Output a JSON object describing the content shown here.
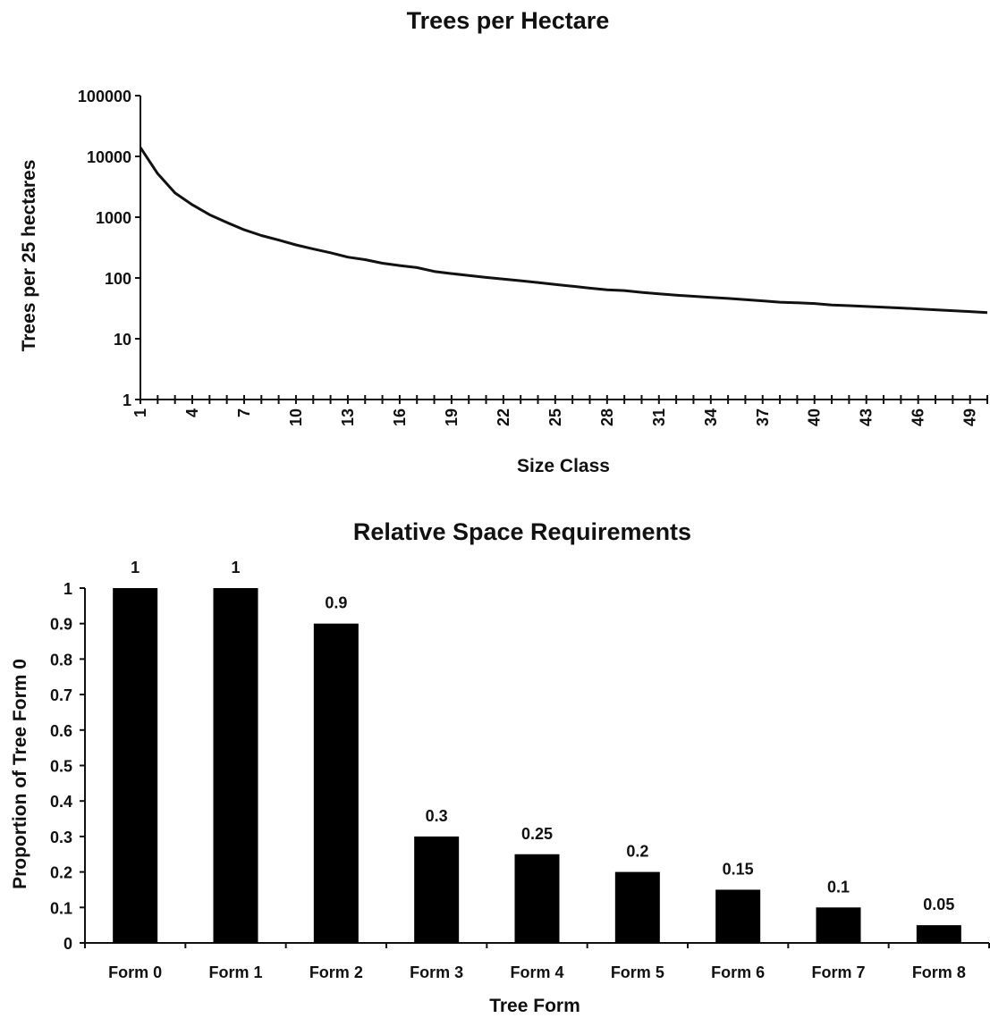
{
  "chart_data": [
    {
      "type": "line",
      "title": "Trees per Hectare",
      "xlabel": "Size Class",
      "ylabel": "Trees per 25 hectares",
      "yscale": "log",
      "ylim": [
        1,
        100000
      ],
      "yticks": [
        "1",
        "10",
        "100",
        "1000",
        "10000",
        "100000"
      ],
      "xlim": [
        1,
        50
      ],
      "xticks": [
        "1",
        "4",
        "7",
        "10",
        "13",
        "16",
        "19",
        "22",
        "25",
        "28",
        "31",
        "34",
        "37",
        "40",
        "43",
        "46",
        "49"
      ],
      "x": [
        1,
        2,
        3,
        4,
        5,
        6,
        7,
        8,
        9,
        10,
        11,
        12,
        13,
        14,
        15,
        16,
        17,
        18,
        19,
        20,
        21,
        22,
        23,
        24,
        25,
        26,
        27,
        28,
        29,
        30,
        31,
        32,
        33,
        34,
        35,
        36,
        37,
        38,
        39,
        40,
        41,
        42,
        43,
        44,
        45,
        46,
        47,
        48,
        49,
        50
      ],
      "series": [
        {
          "values": [
            14000,
            5200,
            2500,
            1600,
            1100,
            820,
            620,
            500,
            420,
            350,
            300,
            260,
            220,
            200,
            175,
            160,
            148,
            128,
            118,
            110,
            102,
            96,
            90,
            84,
            78,
            73,
            68,
            64,
            62,
            58,
            55,
            52,
            50,
            48,
            46,
            44,
            42,
            40,
            39,
            38,
            36,
            35,
            34,
            33,
            32,
            31,
            30,
            29,
            28,
            27
          ]
        }
      ],
      "grid": false,
      "line_color": "#111111"
    },
    {
      "type": "bar",
      "title": "Relative Space Requirements",
      "xlabel": "Tree Form",
      "ylabel": "Proportion of Tree Form 0",
      "ylim": [
        0,
        1
      ],
      "yticks": [
        "0",
        "0.1",
        "0.2",
        "0.3",
        "0.4",
        "0.5",
        "0.6",
        "0.7",
        "0.8",
        "0.9",
        "1"
      ],
      "categories": [
        "Form 0",
        "Form 1",
        "Form 2",
        "Form 3",
        "Form 4",
        "Form 5",
        "Form 6",
        "Form 7",
        "Form 8"
      ],
      "values": [
        1,
        1,
        0.9,
        0.3,
        0.25,
        0.2,
        0.15,
        0.1,
        0.05
      ],
      "data_labels": [
        "1",
        "1",
        "0.9",
        "0.3",
        "0.25",
        "0.2",
        "0.15",
        "0.1",
        "0.05"
      ],
      "grid": false,
      "bar_color": "#000000"
    }
  ]
}
